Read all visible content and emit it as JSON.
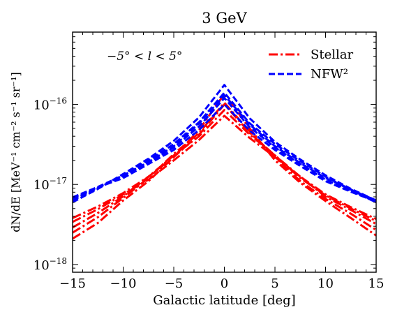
{
  "chart_data": {
    "type": "line",
    "title": "3 GeV",
    "xlabel": "Galactic latitude [deg]",
    "ylabel": "dN/dE [MeV⁻¹ cm⁻² s⁻¹ sr⁻¹]",
    "annotation": "−5° < l < 5°",
    "xlim": [
      -15,
      15
    ],
    "ylim": [
      8e-19,
      8e-16
    ],
    "yscale": "log",
    "x_ticks": [
      -15,
      -10,
      -5,
      0,
      5,
      10,
      15
    ],
    "x_tick_labels": [
      "−15",
      "−10",
      "−5",
      "0",
      "5",
      "10",
      "15"
    ],
    "y_ticks": [
      1e-18,
      1e-17,
      1e-16
    ],
    "y_tick_labels": [
      {
        "base": "10",
        "exp": "−18"
      },
      {
        "base": "10",
        "exp": "−17"
      },
      {
        "base": "10",
        "exp": "−16"
      }
    ],
    "grid": false,
    "legend_position": "top-right",
    "legend": [
      {
        "label": "Stellar",
        "color": "#ff0000",
        "dash": "dash-dot"
      },
      {
        "label": "NFW²",
        "color": "#0000ff",
        "dash": "dashed"
      }
    ],
    "x": [
      -15,
      -12.5,
      -10,
      -7.5,
      -5,
      -2.5,
      0,
      2.5,
      5,
      7.5,
      10,
      12.5,
      15
    ],
    "series": [
      {
        "group": "Stellar",
        "color": "#ff0000",
        "values": [
          2.1e-18,
          3.3e-18,
          6.3e-18,
          1.1e-17,
          2.2e-17,
          4.8e-17,
          1.35e-16,
          5e-17,
          2e-17,
          1.05e-17,
          6.2e-18,
          3.8e-18,
          2.3e-18
        ]
      },
      {
        "group": "Stellar",
        "color": "#ff0000",
        "values": [
          2.5e-18,
          3.9e-18,
          6.8e-18,
          1.2e-17,
          2.4e-17,
          4.4e-17,
          1.05e-16,
          4.6e-17,
          2.2e-17,
          1.1e-17,
          6.6e-18,
          4.3e-18,
          2.7e-18
        ]
      },
      {
        "group": "Stellar",
        "color": "#ff0000",
        "values": [
          2.9e-18,
          4.4e-18,
          7.1e-18,
          1.25e-17,
          2.3e-17,
          4e-17,
          8.5e-17,
          4.2e-17,
          2.3e-17,
          1.25e-17,
          7e-18,
          4.8e-18,
          3.2e-18
        ]
      },
      {
        "group": "Stellar",
        "color": "#ff0000",
        "values": [
          3.4e-18,
          4.9e-18,
          7.5e-18,
          1.15e-17,
          2e-17,
          3.6e-17,
          7.2e-17,
          3.8e-17,
          2.2e-17,
          1.25e-17,
          7.5e-18,
          5.2e-18,
          3.7e-18
        ]
      },
      {
        "group": "Stellar",
        "color": "#ff0000",
        "values": [
          3.8e-18,
          5.3e-18,
          7.8e-18,
          1.25e-17,
          2.2e-17,
          4.2e-17,
          1e-16,
          4.4e-17,
          2.3e-17,
          1.2e-17,
          7.3e-18,
          5e-18,
          3.5e-18
        ]
      },
      {
        "group": "NFW²",
        "color": "#0000ff",
        "values": [
          6e-18,
          8.8e-18,
          1.35e-17,
          2.1e-17,
          3.5e-17,
          6.9e-17,
          1.75e-16,
          6.7e-17,
          3.4e-17,
          2.05e-17,
          1.3e-17,
          8.8e-18,
          6.3e-18
        ]
      },
      {
        "group": "NFW²",
        "color": "#0000ff",
        "values": [
          6.3e-18,
          9e-18,
          1.3e-17,
          2e-17,
          3.2e-17,
          6e-17,
          1.4e-16,
          5.8e-17,
          3.2e-17,
          1.95e-17,
          1.25e-17,
          8.6e-18,
          6e-18
        ]
      },
      {
        "group": "NFW²",
        "color": "#0000ff",
        "values": [
          6.5e-18,
          9.1e-18,
          1.25e-17,
          1.9e-17,
          2.9e-17,
          5.3e-17,
          1.2e-16,
          5.2e-17,
          2.9e-17,
          1.8e-17,
          1.15e-17,
          8.3e-18,
          6e-18
        ]
      },
      {
        "group": "NFW²",
        "color": "#0000ff",
        "values": [
          6.7e-18,
          9.2e-18,
          1.2e-17,
          1.8e-17,
          2.7e-17,
          4.8e-17,
          1e-16,
          4.7e-17,
          2.7e-17,
          1.7e-17,
          1.1e-17,
          8.1e-18,
          6.1e-18
        ]
      },
      {
        "group": "NFW²",
        "color": "#0000ff",
        "values": [
          6.9e-18,
          9.3e-18,
          1.3e-17,
          1.9e-17,
          3e-17,
          5.8e-17,
          1.3e-16,
          5.6e-17,
          3e-17,
          1.85e-17,
          1.2e-17,
          8.6e-18,
          6.3e-18
        ]
      }
    ]
  }
}
